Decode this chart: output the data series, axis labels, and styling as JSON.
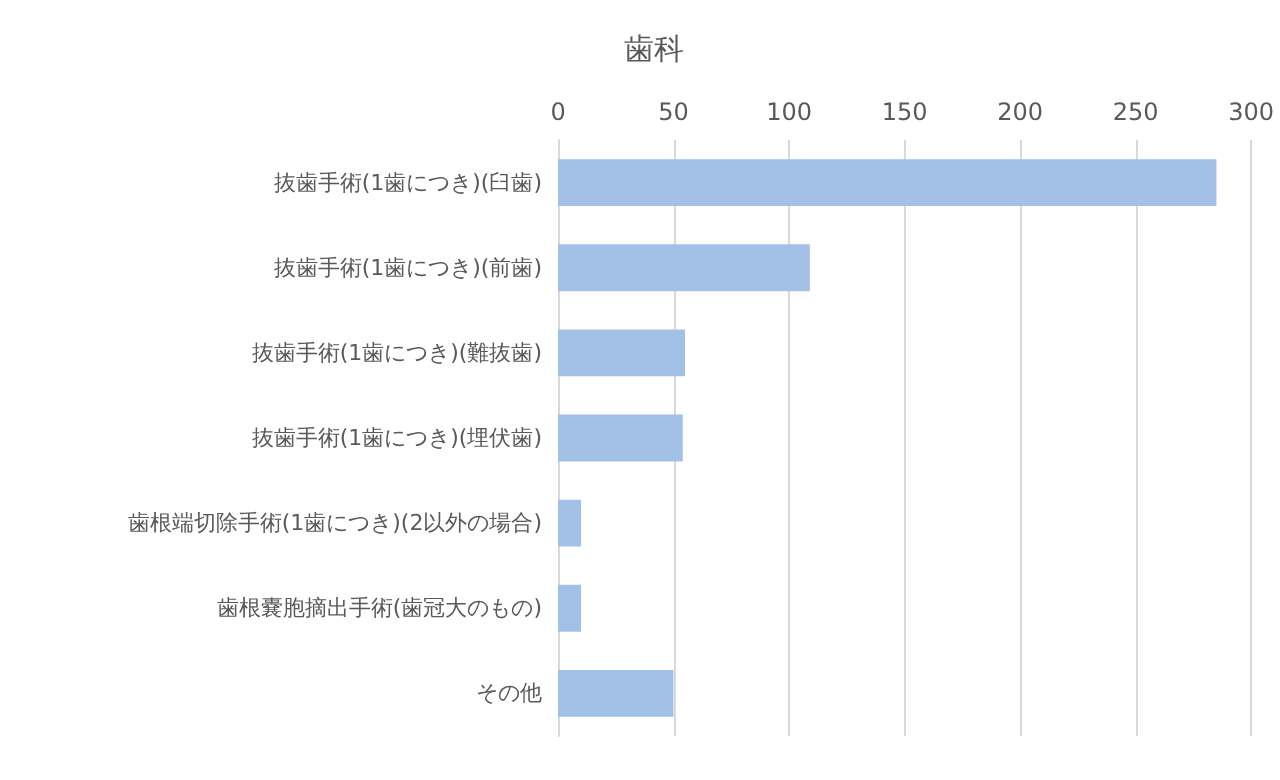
{
  "chart_data": {
    "type": "bar",
    "title": "歯科",
    "orientation": "horizontal",
    "categories": [
      "抜歯手術(1歯につき)(臼歯)",
      "抜歯手術(1歯につき)(前歯)",
      "抜歯手術(1歯につき)(難抜歯)",
      "抜歯手術(1歯につき)(埋伏歯)",
      "歯根端切除手術(1歯につき)(2以外の場合)",
      "歯根嚢胞摘出手術(歯冠大のもの)",
      "その他"
    ],
    "values": [
      285,
      109,
      55,
      54,
      10,
      10,
      50
    ],
    "color": "#a3c0e6",
    "xlim": [
      0,
      300
    ],
    "xticks": [
      0,
      50,
      100,
      150,
      200,
      250,
      300
    ],
    "grid": "x"
  }
}
